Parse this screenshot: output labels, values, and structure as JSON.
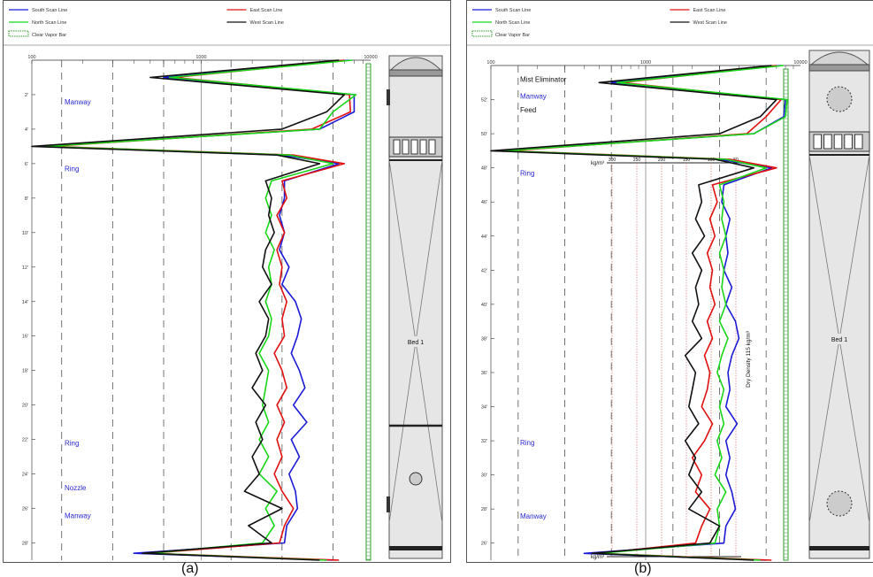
{
  "captions": [
    "(a)",
    "(b)"
  ],
  "legend": {
    "south": "South Scan Line",
    "east": "East Scan Line",
    "north": "North Scan Line",
    "west": "West Scan Line",
    "vapor": "Clear Vapor Bar"
  },
  "colors": {
    "south": "#1b1bd6",
    "east": "#e01010",
    "north": "#19d619",
    "west": "#111111",
    "vapor": "#2e9e2e",
    "annotation": "#2a2ad0"
  },
  "chart_data": [
    {
      "type": "line",
      "panel": "a",
      "xscale": "log",
      "xlim": [
        100,
        10000
      ],
      "xticks": [
        "100",
        "1000",
        "10000"
      ],
      "ylim": [
        0,
        29
      ],
      "yticks": [
        "2'",
        "4'",
        "6'",
        "8'",
        "10'",
        "12'",
        "14'",
        "16'",
        "18'",
        "20'",
        "22'",
        "24'",
        "26'",
        "28'"
      ],
      "annotations": [
        {
          "label": "Manway",
          "y": 2.4
        },
        {
          "label": "Ring",
          "y": 6.3
        },
        {
          "label": "Ring",
          "y": 22.2
        },
        {
          "label": "Nozzle",
          "y": 24.8
        },
        {
          "label": "Manway",
          "y": 26.4
        }
      ],
      "vessel_labels": [
        "Bed 1"
      ],
      "series": [
        {
          "name": "South Scan Line",
          "color_key": "south",
          "y": [
            0,
            1,
            2,
            3,
            4,
            5,
            5.5,
            6,
            7,
            8,
            9,
            10,
            11,
            12,
            13,
            14,
            15,
            16,
            17,
            18,
            19,
            20,
            21,
            22,
            23,
            24,
            25,
            26,
            27,
            28,
            28.6,
            29
          ],
          "x": [
            7500,
            600,
            8000,
            8000,
            5000,
            110,
            3000,
            6500,
            3100,
            3100,
            2900,
            3100,
            2900,
            3300,
            3000,
            3600,
            3900,
            3700,
            3400,
            3800,
            4100,
            3500,
            4200,
            3400,
            3800,
            3300,
            3600,
            3700,
            3200,
            3100,
            400,
            6000
          ]
        },
        {
          "name": "East Scan Line",
          "color_key": "east",
          "y": [
            0,
            1,
            2,
            3,
            4,
            5,
            5.5,
            6,
            7,
            8,
            9,
            10,
            11,
            12,
            13,
            14,
            15,
            16,
            17,
            18,
            19,
            20,
            21,
            22,
            23,
            24,
            25,
            26,
            27,
            28,
            28.6,
            29
          ],
          "x": [
            7000,
            700,
            7500,
            7600,
            4500,
            130,
            3500,
            7000,
            3000,
            3200,
            2800,
            3100,
            2800,
            3000,
            2900,
            3200,
            3000,
            3100,
            2700,
            3000,
            3200,
            2800,
            3100,
            2800,
            3000,
            2700,
            3000,
            3500,
            3100,
            2900,
            500,
            6500
          ]
        },
        {
          "name": "North Scan Line",
          "color_key": "north",
          "y": [
            0,
            1,
            2,
            3,
            4,
            5,
            5.5,
            6,
            7,
            8,
            9,
            10,
            11,
            12,
            13,
            14,
            15,
            16,
            17,
            18,
            19,
            20,
            21,
            22,
            23,
            24,
            25,
            26,
            27,
            28,
            28.6,
            29
          ],
          "x": [
            7800,
            650,
            8200,
            6000,
            5000,
            120,
            3300,
            6000,
            2600,
            2400,
            2600,
            2400,
            2700,
            2500,
            2600,
            2400,
            2600,
            2500,
            2200,
            2500,
            2400,
            2300,
            2500,
            2200,
            2500,
            2200,
            2800,
            2400,
            2700,
            2300,
            500,
            5500
          ]
        },
        {
          "name": "West Scan Line",
          "color_key": "west",
          "y": [
            0,
            1,
            2,
            3,
            4,
            5,
            5.5,
            6,
            7,
            8,
            9,
            10,
            11,
            12,
            13,
            14,
            15,
            16,
            17,
            18,
            19,
            20,
            21,
            22,
            23,
            24,
            25,
            26,
            27,
            28,
            28.6,
            29
          ],
          "x": [
            6500,
            500,
            7000,
            5500,
            3000,
            100,
            2800,
            5000,
            2400,
            2600,
            2500,
            2700,
            2400,
            2300,
            2600,
            2200,
            2500,
            2400,
            2100,
            2300,
            2000,
            2400,
            2100,
            2300,
            2000,
            2200,
            1800,
            3000,
            1900,
            2600,
            450,
            5000
          ]
        }
      ]
    },
    {
      "type": "line",
      "panel": "b",
      "xscale": "log",
      "xlim": [
        100,
        10000
      ],
      "xticks": [
        "100",
        "1000",
        "10000"
      ],
      "ylim": [
        54,
        25
      ],
      "yticks": [
        "52'",
        "50'",
        "48'",
        "46'",
        "44'",
        "42'",
        "40'",
        "38'",
        "36'",
        "34'",
        "32'",
        "30'",
        "28'",
        "26'"
      ],
      "annotations": [
        {
          "label": "Mist Eliminator",
          "y": 53.2,
          "color_key": "black"
        },
        {
          "label": "Manway",
          "y": 52.2,
          "color_key": "annotation"
        },
        {
          "label": "Feed",
          "y": 51.4,
          "color_key": "black"
        },
        {
          "label": "Ring",
          "y": 47.7,
          "color_key": "annotation"
        },
        {
          "label": "Ring",
          "y": 31.9,
          "color_key": "annotation"
        },
        {
          "label": "Manway",
          "y": 27.6,
          "color_key": "annotation"
        }
      ],
      "density_axis": {
        "unit_top": "kg/m³",
        "unit_bottom": "kg/m³",
        "ticks": [
          "300",
          "250",
          "200",
          "150",
          "100",
          "50"
        ],
        "label": "Dry Density 115 kg/m³"
      },
      "vessel_labels": [
        "Bed 1"
      ],
      "series": [
        {
          "name": "South Scan Line",
          "color_key": "south",
          "y": [
            54,
            53,
            52,
            51,
            50,
            49,
            48.5,
            48,
            47,
            46,
            45,
            44,
            43,
            42,
            41,
            40,
            39,
            38,
            37,
            36,
            35,
            34,
            33,
            32,
            31,
            30,
            29,
            28,
            27,
            26,
            25.4,
            25
          ],
          "x": [
            7500,
            600,
            8000,
            7800,
            5000,
            110,
            3000,
            6500,
            3200,
            3100,
            3500,
            3300,
            3400,
            3200,
            3600,
            3300,
            3800,
            4000,
            3600,
            3400,
            3500,
            3300,
            3900,
            3300,
            3500,
            3300,
            3600,
            3800,
            3300,
            3200,
            400,
            6000
          ]
        },
        {
          "name": "East Scan Line",
          "color_key": "east",
          "y": [
            54,
            53,
            52,
            51,
            50,
            49,
            48.5,
            48,
            47,
            46,
            45,
            44,
            43,
            42,
            41,
            40,
            39,
            38,
            37,
            36,
            35,
            34,
            33,
            32,
            31,
            30,
            29,
            28,
            27,
            26,
            25.4,
            25
          ],
          "x": [
            7000,
            700,
            7500,
            6000,
            4500,
            130,
            3500,
            7000,
            2700,
            2900,
            2600,
            2800,
            2500,
            2700,
            2600,
            2800,
            2500,
            2700,
            2400,
            2600,
            2500,
            2300,
            2700,
            2400,
            2000,
            2300,
            2100,
            2600,
            2300,
            2100,
            500,
            6500
          ]
        },
        {
          "name": "North Scan Line",
          "color_key": "north",
          "y": [
            54,
            53,
            52,
            51,
            50,
            49,
            48.5,
            48,
            47,
            46,
            45,
            44,
            43,
            42,
            41,
            40,
            39,
            38,
            37,
            36,
            35,
            34,
            33,
            32,
            31,
            30,
            29,
            28,
            27,
            26,
            25.4,
            25
          ],
          "x": [
            7800,
            650,
            8200,
            8000,
            5000,
            120,
            3300,
            6000,
            3000,
            3200,
            3100,
            3300,
            3000,
            3200,
            3100,
            3300,
            3000,
            3400,
            3100,
            2900,
            3200,
            3000,
            3200,
            2900,
            3100,
            2800,
            3300,
            2900,
            3000,
            2800,
            500,
            5500
          ]
        },
        {
          "name": "West Scan Line",
          "color_key": "west",
          "y": [
            54,
            53,
            52,
            51,
            50,
            49,
            48.5,
            48,
            47,
            46,
            45,
            44,
            43,
            42,
            41,
            40,
            39,
            38,
            37,
            36,
            35,
            34,
            33,
            32,
            31,
            30,
            29,
            28,
            27,
            26,
            25.4,
            25
          ],
          "x": [
            6500,
            500,
            7000,
            5500,
            3000,
            100,
            2800,
            5000,
            2200,
            2300,
            2100,
            2400,
            2000,
            2300,
            2100,
            2200,
            2000,
            2300,
            1800,
            2100,
            2000,
            1900,
            2200,
            1800,
            2100,
            1900,
            2300,
            1900,
            3000,
            2600,
            450,
            5000
          ]
        }
      ]
    }
  ]
}
